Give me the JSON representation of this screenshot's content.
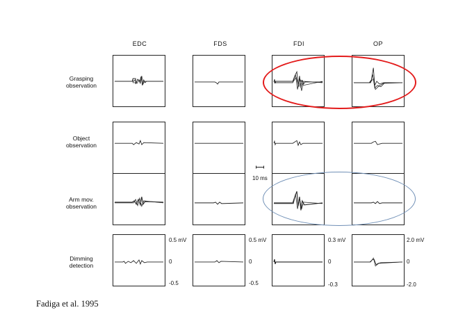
{
  "columns": [
    "EDC",
    "FDS",
    "FDI",
    "OP"
  ],
  "rows": [
    [
      "Grasping",
      "observation"
    ],
    [
      "Object",
      "observation"
    ],
    [
      "Arm mov.",
      "observation"
    ],
    [
      "Dimming",
      "detection"
    ]
  ],
  "scale_labels": {
    "edc": {
      "top": "0.5 mV",
      "mid": "0",
      "bottom": "-0.5"
    },
    "fds": {
      "top": "0.5 mV",
      "mid": "0",
      "bottom": "-0.5"
    },
    "fdi": {
      "top": "0.3 mV",
      "mid": "0",
      "bottom": "-0.3"
    },
    "op": {
      "top": "2.0 mV",
      "mid": "0",
      "bottom": "-2.0"
    }
  },
  "time_scale": "10 ms",
  "highlight_colors": {
    "grasping": "#e31b1b",
    "arm_movement": "#6f8fb6"
  },
  "citation": "Fadiga et al. 1995"
}
